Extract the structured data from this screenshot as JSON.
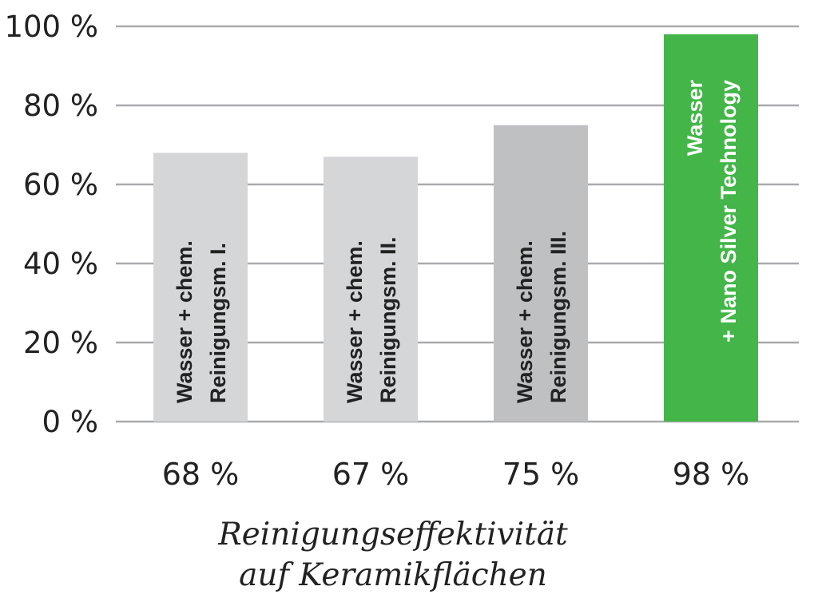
{
  "chart_data": {
    "type": "bar",
    "categories": [
      [
        "Wasser + chem.",
        "Reinigungsm. I."
      ],
      [
        "Wasser + chem.",
        "Reinigungsm. II."
      ],
      [
        "Wasser + chem.",
        "Reinigungsm. III."
      ],
      [
        "Wasser",
        "+ Nano Silver Technology"
      ]
    ],
    "values": [
      68,
      67,
      75,
      98
    ],
    "value_labels": [
      "68 %",
      "67 %",
      "75 %",
      "98 %"
    ],
    "bar_colors": [
      "#d5d6d8",
      "#d5d6d8",
      "#bfc0c2",
      "#44b549"
    ],
    "bar_text_colors": [
      "#222222",
      "#222222",
      "#222222",
      "#ffffff"
    ],
    "gridline_color": "#a9aaad",
    "yticks": [
      0,
      20,
      40,
      60,
      80,
      100
    ],
    "ytick_labels": [
      "0 %",
      "20 %",
      "40 %",
      "60 %",
      "80 %",
      "100 %"
    ],
    "ylim": [
      0,
      100
    ],
    "xlabel": [
      "Reinigungseffektivität",
      "auf Keramikflächen"
    ],
    "grid": true
  }
}
